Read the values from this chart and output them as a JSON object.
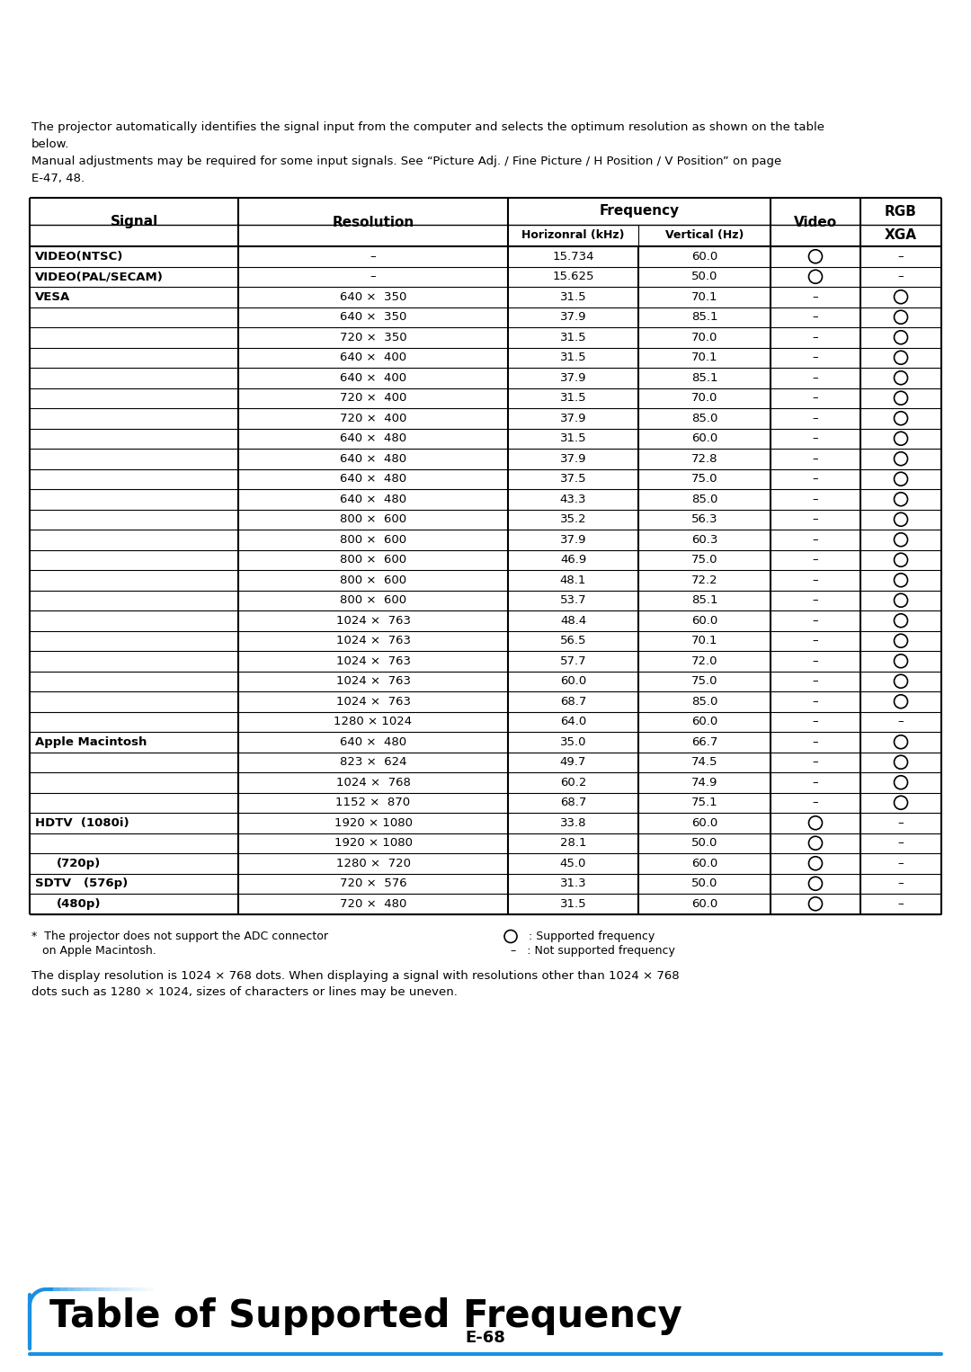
{
  "title": "Table of Supported Frequency",
  "intro_line1": "The projector automatically identifies the signal input from the computer and selects the optimum resolution as shown on the table",
  "intro_line2": "below.",
  "intro_line3": "Manual adjustments may be required for some input signals. See “Picture Adj. / Fine Picture / H Position / V Position” on page",
  "intro_line4": "E-47, 48.",
  "footer_left1": "*  The projector does not support the ADC connector",
  "footer_left2": "   on Apple Macintosh.",
  "footer_right1": "○   : Supported frequency",
  "footer_right2": "–   : Not supported frequency",
  "footer_bottom1": "The display resolution is 1024 × 768 dots. When displaying a signal with resolutions other than 1024 × 768",
  "footer_bottom2": "dots such as 1280 × 1024, sizes of characters or lines may be uneven.",
  "page_num": "E-68",
  "rows": [
    {
      "signal": "VIDEO(NTSC)",
      "resolution": "–",
      "horiz": "15.734",
      "vert": "60.0",
      "video": "O",
      "xga": "–"
    },
    {
      "signal": "VIDEO(PAL/SECAM)",
      "resolution": "–",
      "horiz": "15.625",
      "vert": "50.0",
      "video": "O",
      "xga": "–"
    },
    {
      "signal": "VESA",
      "resolution": "640 ×  350",
      "horiz": "31.5",
      "vert": "70.1",
      "video": "–",
      "xga": "O"
    },
    {
      "signal": "",
      "resolution": "640 ×  350",
      "horiz": "37.9",
      "vert": "85.1",
      "video": "–",
      "xga": "O"
    },
    {
      "signal": "",
      "resolution": "720 ×  350",
      "horiz": "31.5",
      "vert": "70.0",
      "video": "–",
      "xga": "O"
    },
    {
      "signal": "",
      "resolution": "640 ×  400",
      "horiz": "31.5",
      "vert": "70.1",
      "video": "–",
      "xga": "O"
    },
    {
      "signal": "",
      "resolution": "640 ×  400",
      "horiz": "37.9",
      "vert": "85.1",
      "video": "–",
      "xga": "O"
    },
    {
      "signal": "",
      "resolution": "720 ×  400",
      "horiz": "31.5",
      "vert": "70.0",
      "video": "–",
      "xga": "O"
    },
    {
      "signal": "",
      "resolution": "720 ×  400",
      "horiz": "37.9",
      "vert": "85.0",
      "video": "–",
      "xga": "O"
    },
    {
      "signal": "",
      "resolution": "640 ×  480",
      "horiz": "31.5",
      "vert": "60.0",
      "video": "–",
      "xga": "O"
    },
    {
      "signal": "",
      "resolution": "640 ×  480",
      "horiz": "37.9",
      "vert": "72.8",
      "video": "–",
      "xga": "O"
    },
    {
      "signal": "",
      "resolution": "640 ×  480",
      "horiz": "37.5",
      "vert": "75.0",
      "video": "–",
      "xga": "O"
    },
    {
      "signal": "",
      "resolution": "640 ×  480",
      "horiz": "43.3",
      "vert": "85.0",
      "video": "–",
      "xga": "O"
    },
    {
      "signal": "",
      "resolution": "800 ×  600",
      "horiz": "35.2",
      "vert": "56.3",
      "video": "–",
      "xga": "O"
    },
    {
      "signal": "",
      "resolution": "800 ×  600",
      "horiz": "37.9",
      "vert": "60.3",
      "video": "–",
      "xga": "O"
    },
    {
      "signal": "",
      "resolution": "800 ×  600",
      "horiz": "46.9",
      "vert": "75.0",
      "video": "–",
      "xga": "O"
    },
    {
      "signal": "",
      "resolution": "800 ×  600",
      "horiz": "48.1",
      "vert": "72.2",
      "video": "–",
      "xga": "O"
    },
    {
      "signal": "",
      "resolution": "800 ×  600",
      "horiz": "53.7",
      "vert": "85.1",
      "video": "–",
      "xga": "O"
    },
    {
      "signal": "",
      "resolution": "1024 ×  763",
      "horiz": "48.4",
      "vert": "60.0",
      "video": "–",
      "xga": "O"
    },
    {
      "signal": "",
      "resolution": "1024 ×  763",
      "horiz": "56.5",
      "vert": "70.1",
      "video": "–",
      "xga": "O"
    },
    {
      "signal": "",
      "resolution": "1024 ×  763",
      "horiz": "57.7",
      "vert": "72.0",
      "video": "–",
      "xga": "O"
    },
    {
      "signal": "",
      "resolution": "1024 ×  763",
      "horiz": "60.0",
      "vert": "75.0",
      "video": "–",
      "xga": "O"
    },
    {
      "signal": "",
      "resolution": "1024 ×  763",
      "horiz": "68.7",
      "vert": "85.0",
      "video": "–",
      "xga": "O"
    },
    {
      "signal": "",
      "resolution": "1280 × 1024",
      "horiz": "64.0",
      "vert": "60.0",
      "video": "–",
      "xga": "–"
    },
    {
      "signal": "Apple Macintosh",
      "resolution": "640 ×  480",
      "horiz": "35.0",
      "vert": "66.7",
      "video": "–",
      "xga": "O"
    },
    {
      "signal": "",
      "resolution": "823 ×  624",
      "horiz": "49.7",
      "vert": "74.5",
      "video": "–",
      "xga": "O"
    },
    {
      "signal": "",
      "resolution": "1024 ×  768",
      "horiz": "60.2",
      "vert": "74.9",
      "video": "–",
      "xga": "O"
    },
    {
      "signal": "",
      "resolution": "1152 ×  870",
      "horiz": "68.7",
      "vert": "75.1",
      "video": "–",
      "xga": "O"
    },
    {
      "signal": "HDTV  (1080i)",
      "resolution": "1920 × 1080",
      "horiz": "33.8",
      "vert": "60.0",
      "video": "O",
      "xga": "–"
    },
    {
      "signal": "",
      "resolution": "1920 × 1080",
      "horiz": "28.1",
      "vert": "50.0",
      "video": "O",
      "xga": "–"
    },
    {
      "signal": "        (720p)",
      "resolution": "1280 ×  720",
      "horiz": "45.0",
      "vert": "60.0",
      "video": "O",
      "xga": "–"
    },
    {
      "signal": "SDTV   (576p)",
      "resolution": "720 ×  576",
      "horiz": "31.3",
      "vert": "50.0",
      "video": "O",
      "xga": "–"
    },
    {
      "signal": "        (480p)",
      "resolution": "720 ×  480",
      "horiz": "31.5",
      "vert": "60.0",
      "video": "O",
      "xga": "–"
    }
  ],
  "blue_color": "#1a8fe3",
  "bg_color": "#ffffff"
}
